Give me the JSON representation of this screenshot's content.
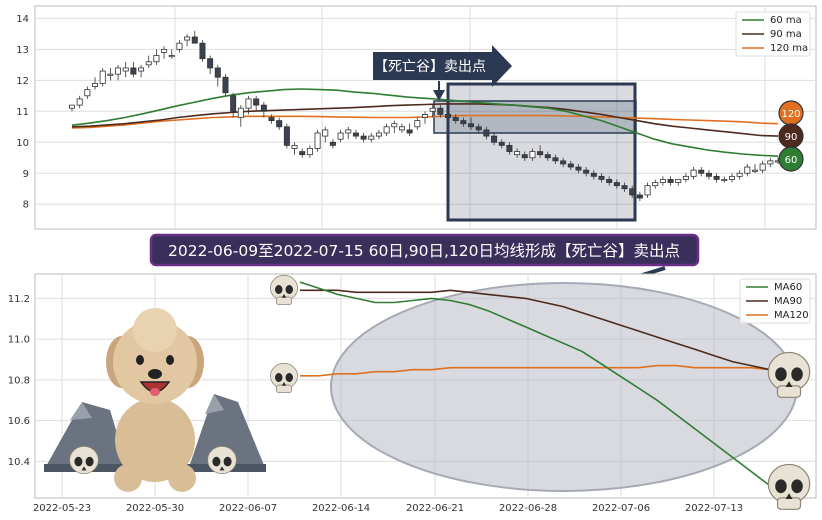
{
  "annotations": {
    "arrow_label": "【死亡谷】卖出点",
    "banner": "2022-06-09至2022-07-15 60日,90日,120日均线形成【死亡谷】卖出点"
  },
  "badges": [
    "120",
    "90",
    "60"
  ],
  "colors": {
    "ma60": "#2e7d32",
    "ma90": "#4e2a1e",
    "ma120": "#e07020",
    "banner_bg": "#3a2f5a",
    "banner_border": "#6a2d8a",
    "box": "#2b3a52",
    "ellipse": "#b8bcc6"
  },
  "chart_data": [
    {
      "type": "candlestick",
      "ylim": [
        7.2,
        14.4
      ],
      "yticks": [
        8,
        9,
        10,
        11,
        12,
        13,
        14
      ],
      "grid": true,
      "legend_position": "top-right",
      "legend": [
        "60 ma",
        "90 ma",
        "120 ma"
      ],
      "ohlc": [
        [
          11.1,
          11.2,
          11.0,
          11.2
        ],
        [
          11.2,
          11.5,
          11.1,
          11.4
        ],
        [
          11.5,
          11.8,
          11.4,
          11.7
        ],
        [
          11.8,
          12.1,
          11.7,
          11.9
        ],
        [
          11.9,
          12.4,
          11.8,
          12.3
        ],
        [
          12.2,
          12.4,
          12.0,
          12.2
        ],
        [
          12.2,
          12.5,
          12.0,
          12.4
        ],
        [
          12.3,
          12.6,
          12.1,
          12.4
        ],
        [
          12.4,
          12.6,
          12.1,
          12.2
        ],
        [
          12.3,
          12.5,
          12.1,
          12.4
        ],
        [
          12.5,
          12.8,
          12.4,
          12.6
        ],
        [
          12.6,
          13.0,
          12.5,
          12.8
        ],
        [
          12.9,
          13.1,
          12.7,
          13.0
        ],
        [
          12.8,
          13.0,
          12.7,
          12.8
        ],
        [
          13.0,
          13.3,
          12.9,
          13.2
        ],
        [
          13.3,
          13.5,
          13.1,
          13.4
        ],
        [
          13.4,
          13.6,
          13.2,
          13.2
        ],
        [
          13.2,
          13.3,
          12.6,
          12.7
        ],
        [
          12.7,
          12.8,
          12.2,
          12.4
        ],
        [
          12.4,
          12.5,
          11.8,
          12.1
        ],
        [
          12.1,
          12.2,
          11.5,
          11.6
        ],
        [
          11.5,
          11.6,
          10.8,
          11.0
        ],
        [
          10.8,
          11.2,
          10.5,
          11.1
        ],
        [
          11.1,
          11.5,
          10.9,
          11.4
        ],
        [
          11.4,
          11.5,
          11.0,
          11.2
        ],
        [
          11.2,
          11.3,
          10.8,
          11.0
        ],
        [
          10.8,
          10.9,
          10.6,
          10.7
        ],
        [
          10.7,
          10.8,
          10.4,
          10.5
        ],
        [
          10.5,
          10.6,
          9.8,
          9.9
        ],
        [
          9.8,
          10.0,
          9.6,
          9.9
        ],
        [
          9.7,
          9.8,
          9.5,
          9.6
        ],
        [
          9.6,
          9.9,
          9.5,
          9.8
        ],
        [
          9.8,
          10.4,
          9.7,
          10.3
        ],
        [
          10.2,
          10.5,
          10.0,
          10.4
        ],
        [
          10.0,
          10.1,
          9.8,
          9.9
        ],
        [
          10.1,
          10.4,
          10.0,
          10.3
        ],
        [
          10.3,
          10.5,
          10.1,
          10.4
        ],
        [
          10.3,
          10.4,
          10.1,
          10.2
        ],
        [
          10.2,
          10.3,
          10.0,
          10.1
        ],
        [
          10.1,
          10.3,
          10.0,
          10.2
        ],
        [
          10.2,
          10.4,
          10.1,
          10.3
        ],
        [
          10.3,
          10.6,
          10.2,
          10.5
        ],
        [
          10.5,
          10.7,
          10.3,
          10.6
        ],
        [
          10.4,
          10.6,
          10.3,
          10.5
        ],
        [
          10.4,
          10.6,
          10.2,
          10.3
        ],
        [
          10.5,
          10.8,
          10.4,
          10.7
        ],
        [
          10.8,
          11.0,
          10.6,
          10.9
        ],
        [
          11.0,
          11.2,
          10.8,
          11.1
        ],
        [
          11.1,
          11.2,
          10.8,
          10.9
        ],
        [
          10.9,
          11.0,
          10.7,
          10.8
        ],
        [
          10.8,
          10.9,
          10.6,
          10.7
        ],
        [
          10.7,
          10.8,
          10.5,
          10.6
        ],
        [
          10.6,
          10.8,
          10.4,
          10.5
        ],
        [
          10.5,
          10.6,
          10.3,
          10.4
        ],
        [
          10.4,
          10.5,
          10.1,
          10.2
        ],
        [
          10.2,
          10.3,
          9.9,
          10.0
        ],
        [
          10.0,
          10.1,
          9.8,
          9.9
        ],
        [
          9.9,
          10.0,
          9.6,
          9.7
        ],
        [
          9.6,
          9.8,
          9.5,
          9.7
        ],
        [
          9.6,
          9.7,
          9.4,
          9.5
        ],
        [
          9.5,
          9.8,
          9.4,
          9.7
        ],
        [
          9.7,
          9.9,
          9.5,
          9.6
        ],
        [
          9.6,
          9.7,
          9.4,
          9.5
        ],
        [
          9.5,
          9.6,
          9.3,
          9.4
        ],
        [
          9.4,
          9.5,
          9.2,
          9.3
        ],
        [
          9.3,
          9.4,
          9.1,
          9.2
        ],
        [
          9.2,
          9.3,
          9.0,
          9.1
        ],
        [
          9.1,
          9.2,
          8.9,
          9.0
        ],
        [
          9.0,
          9.1,
          8.8,
          8.9
        ],
        [
          8.9,
          9.0,
          8.7,
          8.8
        ],
        [
          8.8,
          8.9,
          8.6,
          8.7
        ],
        [
          8.7,
          8.8,
          8.5,
          8.6
        ],
        [
          8.6,
          8.7,
          8.4,
          8.5
        ],
        [
          8.5,
          8.6,
          8.2,
          8.3
        ],
        [
          8.3,
          8.4,
          8.1,
          8.2
        ],
        [
          8.3,
          8.7,
          8.2,
          8.6
        ],
        [
          8.6,
          8.8,
          8.5,
          8.7
        ],
        [
          8.7,
          8.9,
          8.6,
          8.8
        ],
        [
          8.8,
          8.9,
          8.6,
          8.7
        ],
        [
          8.7,
          8.8,
          8.6,
          8.8
        ],
        [
          8.8,
          9.0,
          8.7,
          8.9
        ],
        [
          8.9,
          9.2,
          8.8,
          9.1
        ],
        [
          9.1,
          9.2,
          8.9,
          9.0
        ],
        [
          9.0,
          9.1,
          8.8,
          8.9
        ],
        [
          8.9,
          9.0,
          8.7,
          8.8
        ],
        [
          8.8,
          8.9,
          8.7,
          8.8
        ],
        [
          8.8,
          9.0,
          8.7,
          8.9
        ],
        [
          8.9,
          9.1,
          8.8,
          9.0
        ],
        [
          9.0,
          9.3,
          8.9,
          9.2
        ],
        [
          9.1,
          9.3,
          9.0,
          9.1
        ],
        [
          9.1,
          9.4,
          9.0,
          9.3
        ],
        [
          9.3,
          9.5,
          9.2,
          9.4
        ],
        [
          9.4,
          9.5,
          9.3,
          9.4
        ]
      ],
      "ma60": [
        10.55,
        10.62,
        10.7,
        10.8,
        10.92,
        11.05,
        11.18,
        11.3,
        11.42,
        11.52,
        11.6,
        11.65,
        11.7,
        11.72,
        11.7,
        11.68,
        11.62,
        11.58,
        11.52,
        11.46,
        11.42,
        11.38,
        11.33,
        11.28,
        11.24,
        11.2,
        11.15,
        11.1,
        11.0,
        10.85,
        10.7,
        10.5,
        10.3,
        10.1,
        9.95,
        9.85,
        9.75,
        9.68,
        9.62,
        9.58,
        9.55
      ],
      "ma90": [
        10.5,
        10.52,
        10.56,
        10.6,
        10.66,
        10.72,
        10.8,
        10.86,
        10.92,
        10.96,
        11.0,
        11.02,
        11.04,
        11.06,
        11.08,
        11.1,
        11.12,
        11.15,
        11.18,
        11.2,
        11.22,
        11.24,
        11.24,
        11.24,
        11.22,
        11.2,
        11.16,
        11.12,
        11.06,
        10.98,
        10.9,
        10.8,
        10.7,
        10.6,
        10.52,
        10.46,
        10.4,
        10.34,
        10.28,
        10.22,
        10.2
      ],
      "ma120": [
        10.46,
        10.48,
        10.52,
        10.56,
        10.62,
        10.68,
        10.72,
        10.76,
        10.8,
        10.82,
        10.84,
        10.84,
        10.84,
        10.84,
        10.83,
        10.82,
        10.81,
        10.8,
        10.8,
        10.8,
        10.82,
        10.84,
        10.86,
        10.86,
        10.86,
        10.86,
        10.86,
        10.86,
        10.85,
        10.84,
        10.82,
        10.8,
        10.78,
        10.76,
        10.74,
        10.72,
        10.7,
        10.68,
        10.66,
        10.62,
        10.6
      ]
    },
    {
      "type": "line",
      "ylim": [
        10.22,
        11.32
      ],
      "yticks": [
        10.4,
        10.6,
        10.8,
        11.0,
        11.2
      ],
      "grid": true,
      "legend_position": "top-right",
      "legend": [
        "MA60",
        "MA90",
        "MA120"
      ],
      "xticks": [
        "2022-05-23",
        "2022-05-30",
        "2022-06-07",
        "2022-06-14",
        "2022-06-21",
        "2022-06-28",
        "2022-07-06",
        "2022-07-13"
      ],
      "series": [
        {
          "name": "MA60",
          "values": [
            11.28,
            11.25,
            11.22,
            11.2,
            11.18,
            11.18,
            11.19,
            11.2,
            11.19,
            11.17,
            11.14,
            11.1,
            11.06,
            11.02,
            10.98,
            10.94,
            10.88,
            10.82,
            10.76,
            10.7,
            10.63,
            10.56,
            10.49,
            10.42,
            10.35,
            10.28
          ]
        },
        {
          "name": "MA90",
          "values": [
            11.24,
            11.24,
            11.24,
            11.23,
            11.23,
            11.23,
            11.23,
            11.23,
            11.24,
            11.23,
            11.22,
            11.21,
            11.2,
            11.18,
            11.16,
            11.13,
            11.1,
            11.07,
            11.04,
            11.01,
            10.98,
            10.95,
            10.92,
            10.89,
            10.87,
            10.85
          ]
        },
        {
          "name": "MA120",
          "values": [
            10.82,
            10.82,
            10.83,
            10.83,
            10.84,
            10.84,
            10.85,
            10.85,
            10.86,
            10.86,
            10.86,
            10.86,
            10.86,
            10.86,
            10.86,
            10.86,
            10.86,
            10.86,
            10.86,
            10.87,
            10.87,
            10.86,
            10.86,
            10.86,
            10.86,
            10.85
          ]
        }
      ]
    }
  ]
}
